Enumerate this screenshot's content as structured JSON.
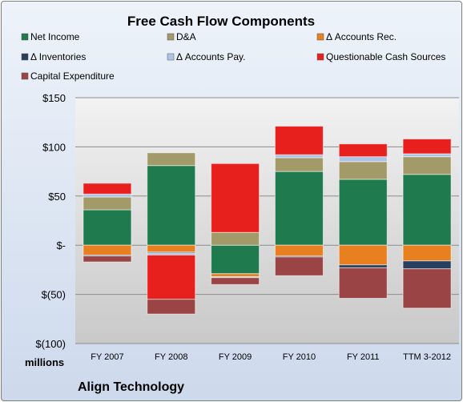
{
  "chart_data": {
    "type": "bar",
    "stacked": true,
    "title": "Free Cash Flow Components",
    "unit_label": "millions",
    "company": "Align Technology",
    "categories": [
      "FY 2007",
      "FY 2008",
      "FY 2009",
      "FY 2010",
      "FY 2011",
      "TTM 3-2012"
    ],
    "ylim": [
      -100,
      150
    ],
    "yticks": [
      -100,
      -50,
      0,
      50,
      100,
      150
    ],
    "ytick_labels": [
      "$(100)",
      "$(50)",
      "$-",
      "$50",
      "$100",
      "$150"
    ],
    "grid": true,
    "legend_position": "top",
    "series": [
      {
        "name": "Net Income",
        "color": "#1f7a4d",
        "values": [
          36,
          81,
          -29,
          75,
          67,
          72
        ]
      },
      {
        "name": "D&A",
        "color": "#a39a6a",
        "values": [
          13,
          13,
          13,
          14,
          18,
          18
        ]
      },
      {
        "name": "Δ Accounts Rec.",
        "color": "#e8801f",
        "values": [
          -10,
          -7,
          -3,
          -11,
          -20,
          -16
        ]
      },
      {
        "name": "Δ Inventories",
        "color": "#26405e",
        "values": [
          -1,
          -1,
          0,
          -1,
          -3,
          -8
        ]
      },
      {
        "name": "Δ Accounts Pay.",
        "color": "#aec4e6",
        "values": [
          3,
          -2,
          -1,
          3,
          5,
          3
        ]
      },
      {
        "name": "Questionable Cash Sources",
        "color": "#e8201d",
        "values": [
          11,
          -45,
          70,
          29,
          13,
          15
        ]
      },
      {
        "name": "Capital Expenditure",
        "color": "#9b4446",
        "values": [
          -6,
          -15,
          -7,
          -19,
          -31,
          -40
        ]
      }
    ]
  }
}
